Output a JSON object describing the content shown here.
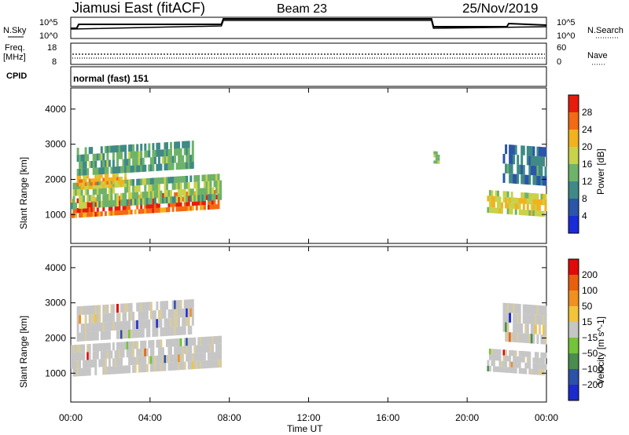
{
  "header": {
    "station": "Jiamusi East (fitACF)",
    "beam": "Beam 23",
    "date": "25/Nov/2019"
  },
  "top_panels": {
    "nsky_label": "N.Sky",
    "nsearch_label": "N.Search",
    "noise_ticks_left": [
      "10^5",
      "10^0"
    ],
    "noise_ticks_right": [
      "10^5",
      "10^0"
    ],
    "freq_label": "Freq.",
    "freq_unit": "[MHz]",
    "freq_ticks": [
      "18",
      "8"
    ],
    "nave_label": "Nave",
    "nave_ticks": [
      "60",
      "0"
    ],
    "cpid_label": "CPID",
    "cpid_value": "normal (fast) 151"
  },
  "colors": {
    "power_scale": [
      "#1a2bd8",
      "#2a55a8",
      "#3f8a86",
      "#6fb26a",
      "#c8d24a",
      "#f2b21e",
      "#f26a14",
      "#e51c0e"
    ],
    "velocity_scale": [
      "#1d2bcc",
      "#2d50a8",
      "#4a8d4f",
      "#73c43a",
      "#c6c6c6",
      "#f2c43a",
      "#f09020",
      "#e8600c",
      "#e00a0a"
    ]
  },
  "chart_data": [
    {
      "type": "heatmap",
      "name": "power-panel",
      "ylabel": "Slant Range [km]",
      "ylim": [
        180,
        4600
      ],
      "y_ticks": [
        "4000",
        "3000",
        "2000",
        "1000"
      ],
      "colorbar_label": "Power [dB]",
      "colorbar_ticks": [
        "28",
        "24",
        "20",
        "16",
        "12",
        "8",
        "4"
      ],
      "colorbar_range": [
        0,
        30
      ],
      "echo_bands": [
        {
          "t_start": 0.0,
          "t_end": 7.6,
          "range_start_km": 900,
          "range_end_km": 1450,
          "power_db": 26
        },
        {
          "t_start": 0.0,
          "t_end": 7.6,
          "range_start_km": 1150,
          "range_end_km": 1900,
          "power_db": 14
        },
        {
          "t_start": 0.3,
          "t_end": 6.2,
          "range_start_km": 2100,
          "range_end_km": 2900,
          "power_db": 12
        },
        {
          "t_start": 0.3,
          "t_end": 2.8,
          "range_start_km": 1700,
          "range_end_km": 2100,
          "power_db": 20
        },
        {
          "t_start": 21.0,
          "t_end": 24.0,
          "range_start_km": 1050,
          "range_end_km": 1700,
          "power_db": 18
        },
        {
          "t_start": 21.8,
          "t_end": 24.0,
          "range_start_km": 1900,
          "range_end_km": 3000,
          "power_db": 8
        },
        {
          "t_start": 18.3,
          "t_end": 18.6,
          "range_start_km": 2450,
          "range_end_km": 2800,
          "power_db": 14
        }
      ]
    },
    {
      "type": "heatmap",
      "name": "velocity-panel",
      "ylabel": "Slant Range [km]",
      "xlabel": "Time UT",
      "x_ticks": [
        "00:00",
        "04:00",
        "08:00",
        "12:00",
        "16:00",
        "20:00",
        "00:00"
      ],
      "ylim": [
        180,
        4600
      ],
      "y_ticks": [
        "4000",
        "3000",
        "2000",
        "1000"
      ],
      "colorbar_label": "Velocity [m s^-1]",
      "colorbar_ticks": [
        "200",
        "100",
        "50",
        "15",
        "-15",
        "-50",
        "-100",
        "-200"
      ],
      "echo_bands": [
        {
          "t_start": 0.0,
          "t_end": 7.6,
          "range_start_km": 900,
          "range_end_km": 1800,
          "velocity": 0
        },
        {
          "t_start": 0.3,
          "t_end": 6.2,
          "range_start_km": 1900,
          "range_end_km": 2900,
          "velocity": 0
        },
        {
          "t_start": 21.0,
          "t_end": 24.0,
          "range_start_km": 1050,
          "range_end_km": 1700,
          "velocity": 0
        },
        {
          "t_start": 21.8,
          "t_end": 24.0,
          "range_start_km": 1900,
          "range_end_km": 3000,
          "velocity": 0
        }
      ]
    }
  ]
}
